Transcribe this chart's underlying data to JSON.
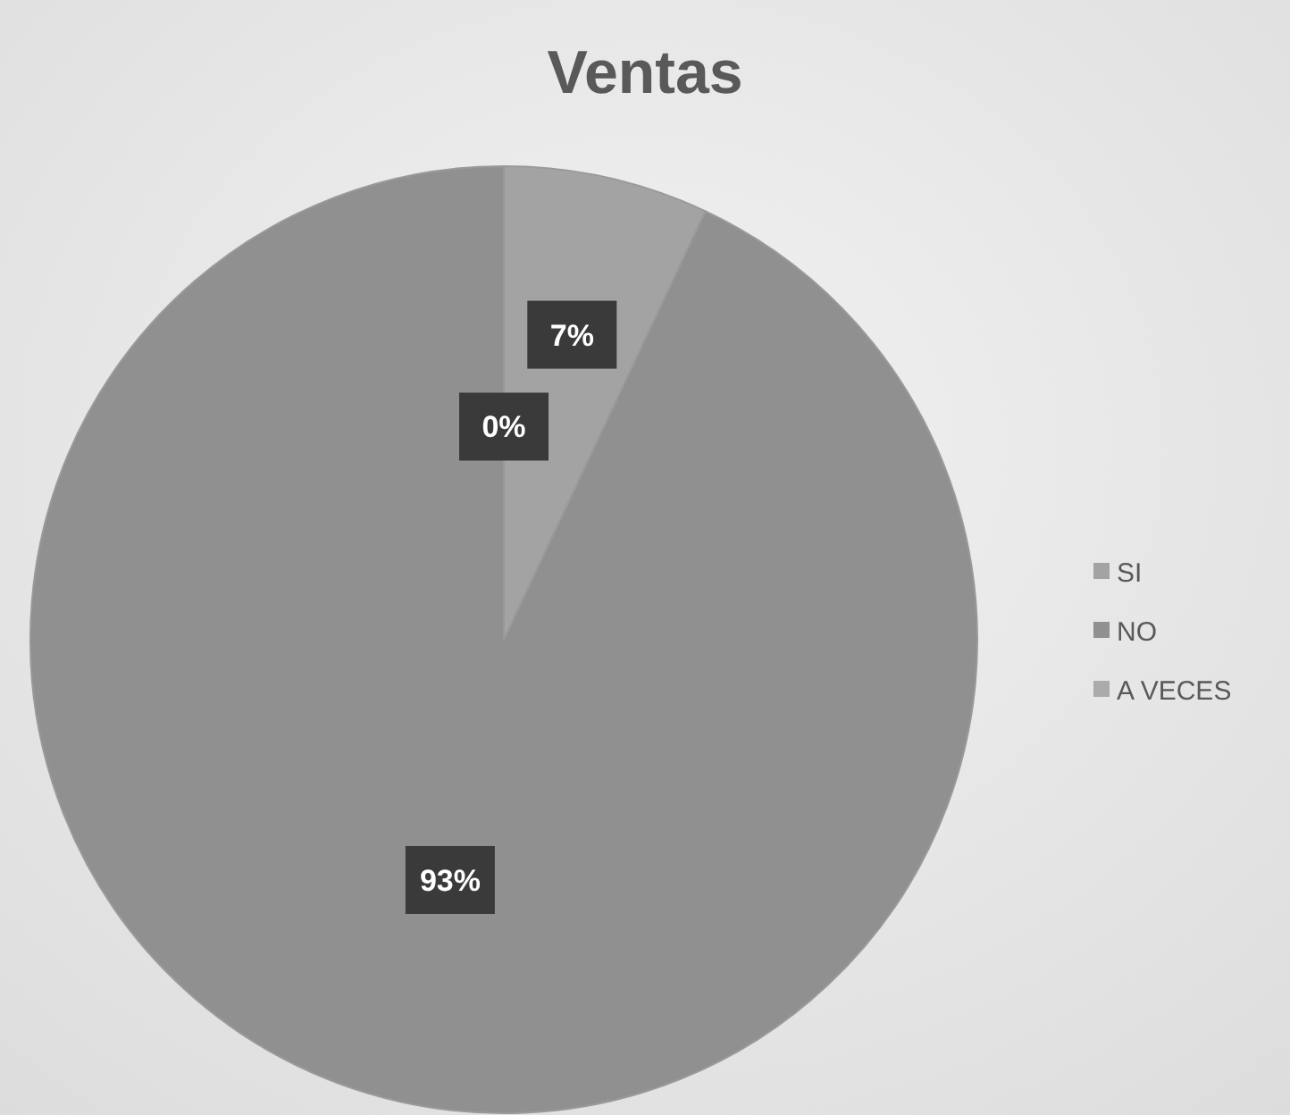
{
  "chart_data": {
    "type": "pie",
    "title": "Ventas",
    "categories": [
      "SI",
      "NO",
      "A VECES"
    ],
    "values": [
      7,
      93,
      0
    ],
    "colors": [
      "#a3a3a3",
      "#909090",
      "#ababab"
    ],
    "value_labels": [
      "7%",
      "93%",
      "0%"
    ],
    "legend": "right"
  }
}
